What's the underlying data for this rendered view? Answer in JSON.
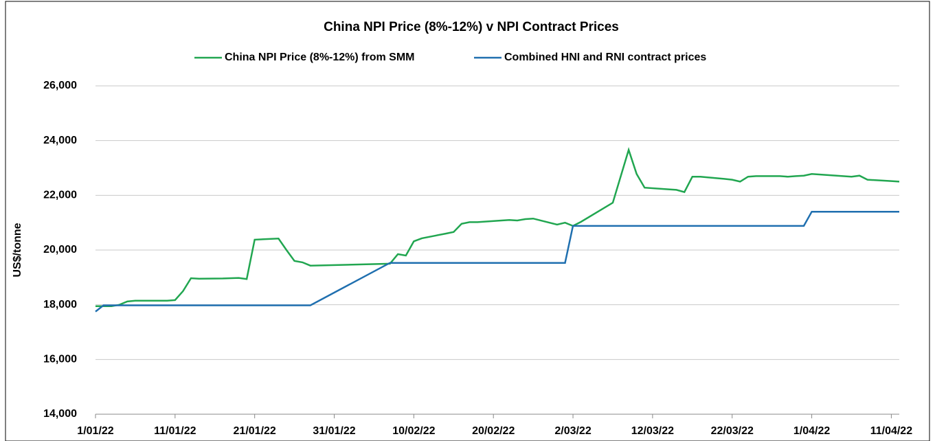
{
  "chart_data": {
    "type": "line",
    "title": "China NPI Price (8%-12%) v NPI Contract Prices",
    "y_label": "US$/tonne",
    "xlim": [
      "2022-01-01",
      "2022-04-12"
    ],
    "xticks": [
      {
        "value": "2022-01-01",
        "label": "1/01/22"
      },
      {
        "value": "2022-01-11",
        "label": "11/01/22"
      },
      {
        "value": "2022-01-21",
        "label": "21/01/22"
      },
      {
        "value": "2022-01-31",
        "label": "31/01/22"
      },
      {
        "value": "2022-02-10",
        "label": "10/02/22"
      },
      {
        "value": "2022-02-20",
        "label": "20/02/22"
      },
      {
        "value": "2022-03-02",
        "label": "2/03/22"
      },
      {
        "value": "2022-03-12",
        "label": "12/03/22"
      },
      {
        "value": "2022-03-22",
        "label": "22/03/22"
      },
      {
        "value": "2022-04-01",
        "label": "1/04/22"
      },
      {
        "value": "2022-04-11",
        "label": "11/04/22"
      }
    ],
    "ylim": [
      14000,
      26000
    ],
    "yticks": [
      {
        "value": 14000,
        "label": "14,000"
      },
      {
        "value": 16000,
        "label": "16,000"
      },
      {
        "value": 18000,
        "label": "18,000"
      },
      {
        "value": 20000,
        "label": "20,000"
      },
      {
        "value": 22000,
        "label": "22,000"
      },
      {
        "value": 24000,
        "label": "24,000"
      },
      {
        "value": 26000,
        "label": "26,000"
      }
    ],
    "grid": true,
    "series": [
      {
        "name": "China NPI Price (8%-12%) from SMM",
        "color": "#21a650",
        "x": [
          "2022-01-01",
          "2022-01-03",
          "2022-01-04",
          "2022-01-05",
          "2022-01-06",
          "2022-01-07",
          "2022-01-10",
          "2022-01-11",
          "2022-01-12",
          "2022-01-13",
          "2022-01-14",
          "2022-01-17",
          "2022-01-18",
          "2022-01-19",
          "2022-01-20",
          "2022-01-21",
          "2022-01-24",
          "2022-01-25",
          "2022-01-26",
          "2022-01-27",
          "2022-01-28",
          "2022-02-07",
          "2022-02-08",
          "2022-02-09",
          "2022-02-10",
          "2022-02-11",
          "2022-02-14",
          "2022-02-15",
          "2022-02-16",
          "2022-02-17",
          "2022-02-18",
          "2022-02-21",
          "2022-02-22",
          "2022-02-23",
          "2022-02-24",
          "2022-02-25",
          "2022-02-28",
          "2022-03-01",
          "2022-03-02",
          "2022-03-03",
          "2022-03-07",
          "2022-03-09",
          "2022-03-10",
          "2022-03-11",
          "2022-03-14",
          "2022-03-15",
          "2022-03-16",
          "2022-03-17",
          "2022-03-18",
          "2022-03-21",
          "2022-03-22",
          "2022-03-23",
          "2022-03-24",
          "2022-03-25",
          "2022-03-28",
          "2022-03-29",
          "2022-03-30",
          "2022-03-31",
          "2022-04-01",
          "2022-04-06",
          "2022-04-07",
          "2022-04-08",
          "2022-04-11",
          "2022-04-12"
        ],
        "values": [
          17950,
          17950,
          18000,
          18120,
          18150,
          18150,
          18150,
          18170,
          18500,
          18970,
          18950,
          18960,
          18970,
          18980,
          18940,
          20380,
          20420,
          20000,
          19600,
          19550,
          19430,
          19500,
          19850,
          19800,
          20320,
          20430,
          20600,
          20660,
          20960,
          21020,
          21020,
          21080,
          21100,
          21080,
          21130,
          21150,
          20930,
          21000,
          20880,
          21030,
          21730,
          23660,
          22780,
          22280,
          22220,
          22200,
          22120,
          22680,
          22680,
          22600,
          22570,
          22500,
          22680,
          22700,
          22700,
          22680,
          22700,
          22720,
          22780,
          22680,
          22720,
          22570,
          22520,
          22500
        ]
      },
      {
        "name": "Combined HNI and RNI contract prices",
        "color": "#1f6faf",
        "x": [
          "2022-01-01",
          "2022-01-02",
          "2022-01-28",
          "2022-02-07",
          "2022-03-01",
          "2022-03-02",
          "2022-03-31",
          "2022-04-01",
          "2022-04-12"
        ],
        "values": [
          17750,
          17980,
          17980,
          19530,
          19530,
          20880,
          20880,
          21400,
          21400
        ]
      }
    ]
  }
}
